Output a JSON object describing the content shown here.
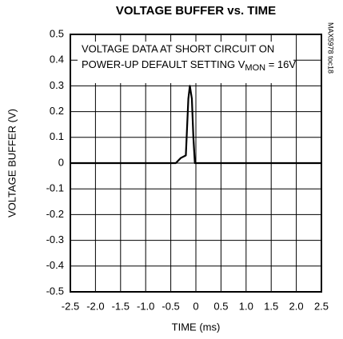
{
  "chart_data": {
    "type": "line",
    "title": "VOLTAGE BUFFER vs. TIME",
    "xlabel": "TIME (ms)",
    "ylabel": "VOLTAGE BUFFER (V)",
    "annotation": {
      "line1": "VOLTAGE DATA AT SHORT CIRCUIT ON",
      "line2": "POWER-UP DEFAULT SETTING V",
      "subscript": "MON",
      "line2_end": " = 16V"
    },
    "side_note": "MAX5978 toc18",
    "x": [
      -2.5,
      -0.4,
      -0.35,
      -0.3,
      -0.2,
      -0.15,
      -0.12,
      -0.08,
      -0.05,
      -0.02,
      2.5
    ],
    "series": [
      {
        "name": "VOLTAGE BUFFER",
        "color": "#000000",
        "values": [
          0,
          0,
          0.01,
          0.02,
          0.03,
          0.25,
          0.3,
          0.25,
          0.1,
          0,
          0
        ]
      }
    ],
    "xlim": [
      -2.5,
      2.5
    ],
    "xticks": [
      -2.5,
      {
        "value": -2,
        "label": "-2.0"
      },
      -1.5,
      {
        "value": -1,
        "label": "-1.0"
      },
      -0.5,
      0,
      0.5,
      {
        "value": 1,
        "label": "1.0"
      },
      1.5,
      {
        "value": 2,
        "label": "2.0"
      },
      2.5
    ],
    "ylim": [
      -0.5,
      0.5
    ],
    "yticks": [
      -0.5,
      -0.4,
      -0.3,
      -0.2,
      -0.1,
      0,
      0.1,
      0.2,
      0.3,
      0.4,
      0.5
    ],
    "grid": true
  }
}
